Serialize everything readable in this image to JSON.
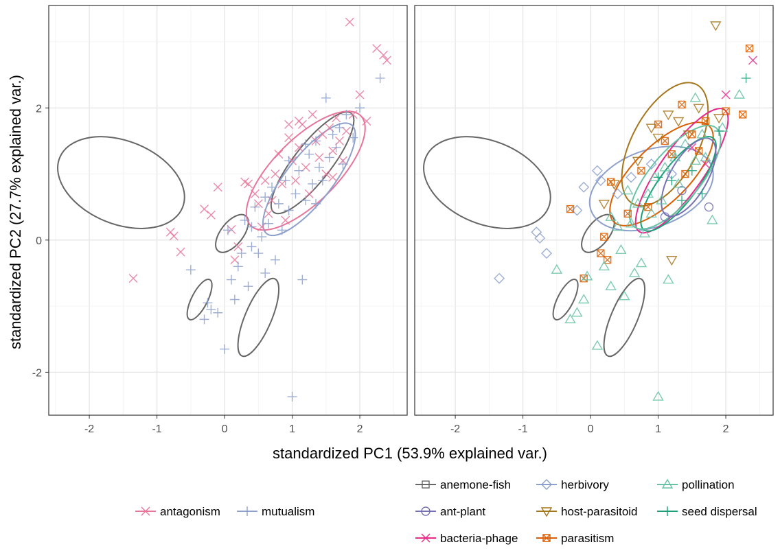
{
  "labels": {
    "xlabel": "standardized PC1 (53.9% explained var.)",
    "ylabel": "standardized PC2 (27.7% explained var.)"
  },
  "colors": {
    "antagonism": "#e7759a",
    "mutualism": "#8da0cb",
    "anemone-fish": "#666666",
    "ant-plant": "#7570b3",
    "bacteria-phage": "#e7298a",
    "herbivory": "#8da0cb",
    "host-parasitoid": "#a6761d",
    "parasitism": "#d95f02",
    "pollination": "#66c2a5",
    "seed-dispersal": "#1b9e77"
  },
  "legend_left": {
    "items": [
      {
        "label": "antagonism",
        "key": "antagonism",
        "shape": "x"
      },
      {
        "label": "mutualism",
        "key": "mutualism",
        "shape": "plus"
      }
    ]
  },
  "legend_right": {
    "items": [
      {
        "label": "anemone-fish",
        "key": "anemone-fish",
        "shape": "square"
      },
      {
        "label": "ant-plant",
        "key": "ant-plant",
        "shape": "circle"
      },
      {
        "label": "bacteria-phage",
        "key": "bacteria-phage",
        "shape": "x"
      },
      {
        "label": "herbivory",
        "key": "herbivory",
        "shape": "diamond"
      },
      {
        "label": "host-parasitoid",
        "key": "host-parasitoid",
        "shape": "triangle-down"
      },
      {
        "label": "parasitism",
        "key": "parasitism",
        "shape": "square-x"
      },
      {
        "label": "pollination",
        "key": "pollination",
        "shape": "triangle-up"
      },
      {
        "label": "seed dispersal",
        "key": "seed-dispersal",
        "shape": "plus"
      }
    ]
  },
  "chart_data": [
    {
      "type": "scatter",
      "xlabel": "standardized PC1 (53.9% explained var.)",
      "ylabel": "standardized PC2 (27.7% explained var.)",
      "xlim": [
        -2.6,
        2.7
      ],
      "ylim": [
        -2.65,
        3.55
      ],
      "xticks": [
        -2,
        -1,
        0,
        1,
        2
      ],
      "yticks": [
        -2,
        0,
        2
      ],
      "grid": true,
      "ellipses": [
        {
          "group": "anemone-fish",
          "cx": -1.53,
          "cy": 0.87,
          "rx": 0.98,
          "ry": 0.63,
          "angle": -22
        },
        {
          "group": "anemone-fish",
          "cx": 0.11,
          "cy": 0.1,
          "rx": 0.33,
          "ry": 0.17,
          "angle": 52
        },
        {
          "group": "anemone-fish",
          "cx": -0.37,
          "cy": -0.9,
          "rx": 0.33,
          "ry": 0.12,
          "angle": 63
        },
        {
          "group": "anemone-fish",
          "cx": 0.5,
          "cy": -1.17,
          "rx": 0.62,
          "ry": 0.2,
          "angle": 67
        },
        {
          "group": "anemone-fish",
          "cx": 1.3,
          "cy": 1.17,
          "rx": 0.93,
          "ry": 0.28,
          "angle": 52
        },
        {
          "group": "antagonism",
          "cx": 1.2,
          "cy": 1.05,
          "rx": 1.15,
          "ry": 0.48,
          "angle": 45
        },
        {
          "group": "mutualism",
          "cx": 1.25,
          "cy": 0.92,
          "rx": 1.02,
          "ry": 0.35,
          "angle": 52
        }
      ],
      "series": [
        {
          "name": "antagonism",
          "shape": "x",
          "points": [
            [
              -1.35,
              -0.58
            ],
            [
              -0.8,
              0.12
            ],
            [
              -0.75,
              0.06
            ],
            [
              -0.65,
              -0.18
            ],
            [
              -0.3,
              0.47
            ],
            [
              -0.2,
              0.38
            ],
            [
              -0.1,
              0.8
            ],
            [
              0.1,
              0.16
            ],
            [
              0.15,
              -0.3
            ],
            [
              0.2,
              -0.1
            ],
            [
              0.3,
              0.88
            ],
            [
              0.35,
              0.85
            ],
            [
              0.45,
              0.7
            ],
            [
              0.5,
              0.55
            ],
            [
              0.6,
              0.9
            ],
            [
              0.65,
              0.4
            ],
            [
              0.7,
              0.6
            ],
            [
              0.75,
              1.0
            ],
            [
              0.8,
              1.3
            ],
            [
              0.85,
              0.85
            ],
            [
              0.9,
              0.3
            ],
            [
              0.95,
              1.55
            ],
            [
              1.0,
              1.2
            ],
            [
              1.05,
              0.9
            ],
            [
              1.1,
              1.4
            ],
            [
              1.15,
              1.75
            ],
            [
              1.2,
              1.1
            ],
            [
              1.25,
              0.7
            ],
            [
              1.3,
              1.9
            ],
            [
              1.35,
              1.5
            ],
            [
              1.4,
              1.25
            ],
            [
              1.45,
              1.6
            ],
            [
              1.5,
              1.0
            ],
            [
              1.55,
              1.7
            ],
            [
              1.6,
              1.35
            ],
            [
              1.65,
              1.85
            ],
            [
              1.7,
              1.5
            ],
            [
              1.75,
              1.2
            ],
            [
              1.8,
              1.65
            ],
            [
              1.85,
              3.3
            ],
            [
              1.9,
              1.9
            ],
            [
              2.0,
              2.2
            ],
            [
              2.1,
              1.8
            ],
            [
              2.25,
              2.9
            ],
            [
              2.35,
              2.8
            ],
            [
              2.4,
              2.72
            ],
            [
              0.95,
              1.75
            ],
            [
              1.1,
              1.8
            ],
            [
              0.55,
              0.2
            ],
            [
              1.6,
              0.95
            ]
          ]
        },
        {
          "name": "mutualism",
          "shape": "plus",
          "points": [
            [
              -0.5,
              -0.45
            ],
            [
              -0.3,
              -1.2
            ],
            [
              -0.25,
              -0.95
            ],
            [
              -0.2,
              -1.05
            ],
            [
              -0.1,
              -1.1
            ],
            [
              0.0,
              -1.65
            ],
            [
              0.05,
              0.15
            ],
            [
              0.1,
              -0.6
            ],
            [
              0.2,
              -0.4
            ],
            [
              0.25,
              -0.2
            ],
            [
              0.3,
              0.3
            ],
            [
              0.35,
              -0.7
            ],
            [
              0.4,
              0.2
            ],
            [
              0.45,
              0.5
            ],
            [
              0.5,
              -0.2
            ],
            [
              0.55,
              0.05
            ],
            [
              0.6,
              -0.5
            ],
            [
              0.65,
              0.25
            ],
            [
              0.7,
              0.8
            ],
            [
              0.75,
              -0.3
            ],
            [
              0.8,
              0.55
            ],
            [
              0.85,
              0.15
            ],
            [
              0.9,
              0.9
            ],
            [
              0.95,
              0.45
            ],
            [
              1.0,
              -2.37
            ],
            [
              1.05,
              0.7
            ],
            [
              1.1,
              1.05
            ],
            [
              1.15,
              -0.6
            ],
            [
              1.2,
              0.6
            ],
            [
              1.25,
              1.3
            ],
            [
              1.3,
              0.85
            ],
            [
              1.35,
              1.5
            ],
            [
              1.4,
              1.1
            ],
            [
              1.45,
              0.9
            ],
            [
              1.5,
              2.15
            ],
            [
              1.55,
              1.25
            ],
            [
              1.6,
              1.6
            ],
            [
              1.65,
              1.4
            ],
            [
              1.7,
              1.7
            ],
            [
              1.75,
              1.15
            ],
            [
              1.8,
              1.9
            ],
            [
              1.9,
              1.55
            ],
            [
              2.0,
              2.0
            ],
            [
              2.3,
              2.45
            ],
            [
              0.6,
              0.65
            ],
            [
              0.95,
              1.2
            ],
            [
              1.2,
              1.45
            ],
            [
              1.35,
              0.55
            ],
            [
              0.4,
              -0.1
            ],
            [
              0.15,
              -0.9
            ]
          ]
        }
      ]
    },
    {
      "type": "scatter",
      "xlabel": "standardized PC1 (53.9% explained var.)",
      "ylabel": "standardized PC2 (27.7% explained var.)",
      "xlim": [
        -2.6,
        2.7
      ],
      "ylim": [
        -2.65,
        3.55
      ],
      "xticks": [
        -2,
        -1,
        0,
        1,
        2
      ],
      "yticks": [
        -2,
        0,
        2
      ],
      "grid": true,
      "ellipses": [
        {
          "group": "anemone-fish",
          "cx": -1.53,
          "cy": 0.87,
          "rx": 0.98,
          "ry": 0.63,
          "angle": -22
        },
        {
          "group": "anemone-fish",
          "cx": 0.11,
          "cy": 0.1,
          "rx": 0.33,
          "ry": 0.17,
          "angle": 52
        },
        {
          "group": "anemone-fish",
          "cx": -0.37,
          "cy": -0.9,
          "rx": 0.33,
          "ry": 0.12,
          "angle": 63
        },
        {
          "group": "anemone-fish",
          "cx": 0.5,
          "cy": -1.17,
          "rx": 0.62,
          "ry": 0.2,
          "angle": 67
        },
        {
          "group": "herbivory",
          "cx": 0.9,
          "cy": 0.78,
          "rx": 0.95,
          "ry": 0.58,
          "angle": 20
        },
        {
          "group": "host-parasitoid",
          "cx": 1.1,
          "cy": 1.45,
          "rx": 1.0,
          "ry": 0.5,
          "angle": 62
        },
        {
          "group": "parasitism",
          "cx": 1.05,
          "cy": 1.0,
          "rx": 1.0,
          "ry": 0.42,
          "angle": 45
        },
        {
          "group": "bacteria-phage",
          "cx": 1.35,
          "cy": 1.05,
          "rx": 1.1,
          "ry": 0.33,
          "angle": 55
        },
        {
          "group": "seed-dispersal",
          "cx": 1.3,
          "cy": 0.85,
          "rx": 0.85,
          "ry": 0.28,
          "angle": 53
        },
        {
          "group": "pollination",
          "cx": 1.25,
          "cy": 0.95,
          "rx": 0.95,
          "ry": 0.38,
          "angle": 50
        },
        {
          "group": "ant-plant",
          "cx": 1.45,
          "cy": 0.95,
          "rx": 0.65,
          "ry": 0.28,
          "angle": 60
        }
      ],
      "series": [
        {
          "name": "herbivory",
          "shape": "diamond",
          "points": [
            [
              -1.35,
              -0.58
            ],
            [
              -0.8,
              0.12
            ],
            [
              -0.75,
              0.03
            ],
            [
              -0.65,
              -0.2
            ],
            [
              -0.2,
              0.45
            ],
            [
              0.1,
              1.05
            ],
            [
              0.15,
              0.9
            ],
            [
              -0.1,
              0.8
            ],
            [
              0.4,
              0.7
            ],
            [
              0.9,
              1.15
            ],
            [
              1.2,
              1.0
            ],
            [
              0.6,
              0.95
            ]
          ]
        },
        {
          "name": "host-parasitoid",
          "shape": "triangle-down",
          "points": [
            [
              1.85,
              3.25
            ],
            [
              0.2,
              0.55
            ],
            [
              0.35,
              0.85
            ],
            [
              0.9,
              1.7
            ],
            [
              1.0,
              1.55
            ],
            [
              1.15,
              1.9
            ],
            [
              1.3,
              1.8
            ],
            [
              1.45,
              1.6
            ],
            [
              1.6,
              2.0
            ],
            [
              1.2,
              -0.3
            ],
            [
              0.7,
              1.2
            ],
            [
              1.9,
              1.85
            ]
          ]
        },
        {
          "name": "parasitism",
          "shape": "square-x",
          "points": [
            [
              -0.3,
              0.47
            ],
            [
              -0.1,
              -0.58
            ],
            [
              0.2,
              0.05
            ],
            [
              0.25,
              -0.3
            ],
            [
              0.15,
              -0.2
            ],
            [
              0.3,
              0.88
            ],
            [
              0.55,
              0.4
            ],
            [
              0.75,
              1.05
            ],
            [
              1.0,
              1.75
            ],
            [
              1.1,
              1.5
            ],
            [
              1.2,
              1.3
            ],
            [
              1.35,
              2.05
            ],
            [
              1.5,
              1.6
            ],
            [
              1.6,
              1.35
            ],
            [
              1.7,
              1.8
            ],
            [
              2.0,
              1.95
            ],
            [
              2.35,
              2.9
            ],
            [
              2.25,
              1.9
            ],
            [
              0.85,
              0.5
            ],
            [
              1.4,
              1.0
            ]
          ]
        },
        {
          "name": "bacteria-phage",
          "shape": "x",
          "points": [
            [
              2.4,
              2.72
            ],
            [
              2.0,
              2.2
            ],
            [
              1.5,
              1.4
            ],
            [
              1.7,
              1.15
            ]
          ]
        },
        {
          "name": "ant-plant",
          "shape": "circle",
          "points": [
            [
              1.75,
              0.5
            ],
            [
              1.35,
              0.75
            ],
            [
              1.1,
              0.35
            ]
          ]
        },
        {
          "name": "pollination",
          "shape": "triangle-up",
          "points": [
            [
              -0.5,
              -0.45
            ],
            [
              -0.3,
              -1.2
            ],
            [
              -0.2,
              -1.1
            ],
            [
              -0.1,
              -0.9
            ],
            [
              -0.05,
              -0.55
            ],
            [
              0.1,
              -1.6
            ],
            [
              0.2,
              -0.4
            ],
            [
              0.3,
              -0.7
            ],
            [
              0.4,
              0.2
            ],
            [
              0.45,
              -0.15
            ],
            [
              0.5,
              -0.85
            ],
            [
              0.6,
              0.25
            ],
            [
              0.65,
              -0.5
            ],
            [
              0.7,
              0.55
            ],
            [
              0.75,
              -0.35
            ],
            [
              0.8,
              0.1
            ],
            [
              0.85,
              0.7
            ],
            [
              0.9,
              0.4
            ],
            [
              0.95,
              0.95
            ],
            [
              1.0,
              -2.37
            ],
            [
              1.05,
              0.6
            ],
            [
              1.15,
              -0.6
            ],
            [
              1.25,
              1.25
            ],
            [
              1.3,
              0.85
            ],
            [
              1.4,
              1.45
            ],
            [
              1.55,
              1.2
            ],
            [
              1.65,
              1.6
            ],
            [
              1.7,
              1.25
            ],
            [
              1.8,
              0.3
            ],
            [
              1.55,
              2.15
            ],
            [
              2.2,
              2.2
            ],
            [
              1.95,
              1.7
            ],
            [
              0.3,
              0.35
            ],
            [
              0.55,
              0.75
            ],
            [
              1.1,
              1.1
            ]
          ]
        },
        {
          "name": "seed dispersal",
          "shape": "plus",
          "points": [
            [
              2.3,
              2.45
            ],
            [
              1.2,
              0.9
            ],
            [
              1.35,
              0.6
            ],
            [
              1.5,
              1.05
            ],
            [
              1.65,
              0.7
            ],
            [
              1.0,
              0.95
            ],
            [
              1.9,
              1.65
            ]
          ]
        }
      ]
    }
  ]
}
